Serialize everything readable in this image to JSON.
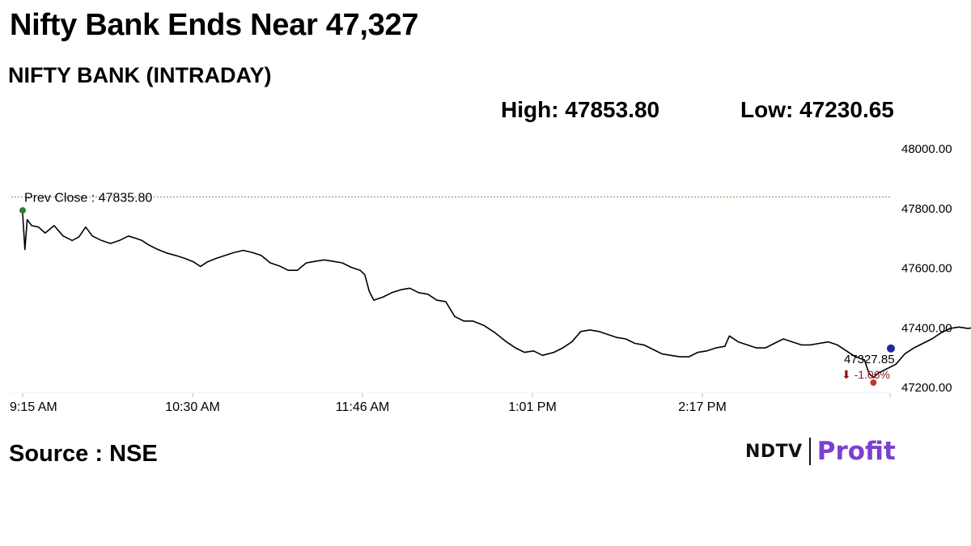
{
  "header": {
    "title": "Nifty Bank Ends Near 47,327",
    "subtitle": "NIFTY BANK (INTRADAY)",
    "high_label": "High: 47853.80",
    "low_label": "Low: 47230.65"
  },
  "footer": {
    "source": "Source : NSE",
    "brand_left": "NDTV",
    "brand_right": "Profit"
  },
  "colors": {
    "line": "#000000",
    "prev_close_line": "#b07a4a",
    "start_marker": "#2e7d32",
    "low_marker": "#c0392b",
    "end_marker": "#1a2aa0",
    "change_text": "#8b1a1a",
    "brand_accent": "#7b3fd1"
  },
  "chart_data": {
    "type": "line",
    "title": "NIFTY BANK (INTRADAY)",
    "xlabel": "",
    "ylabel": "",
    "x_ticks": [
      "9:15 AM",
      "10:30 AM",
      "11:46 AM",
      "1:01 PM",
      "2:17 PM"
    ],
    "y_ticks": [
      "48000.00",
      "47800.00",
      "47600.00",
      "47400.00",
      "47200.00"
    ],
    "ylim": [
      47200,
      48000
    ],
    "xlim_minutes_from_open": [
      0,
      375
    ],
    "grid": false,
    "prev_close": {
      "label": "Prev Close : 47835.80",
      "value": 47835.8
    },
    "last_value_label": "47327.85",
    "change_label": "-1.06%",
    "series": [
      {
        "values_by_minute": [
          [
            0,
            47780
          ],
          [
            1,
            47660
          ],
          [
            2,
            47760
          ],
          [
            4,
            47740
          ],
          [
            7,
            47735
          ],
          [
            10,
            47715
          ],
          [
            14,
            47740
          ],
          [
            18,
            47705
          ],
          [
            22,
            47690
          ],
          [
            25,
            47702
          ],
          [
            28,
            47735
          ],
          [
            31,
            47705
          ],
          [
            35,
            47690
          ],
          [
            39,
            47680
          ],
          [
            43,
            47690
          ],
          [
            47,
            47705
          ],
          [
            50,
            47698
          ],
          [
            53,
            47690
          ],
          [
            56,
            47675
          ],
          [
            60,
            47660
          ],
          [
            64,
            47648
          ],
          [
            68,
            47640
          ],
          [
            72,
            47630
          ],
          [
            76,
            47618
          ],
          [
            79,
            47603
          ],
          [
            82,
            47618
          ],
          [
            86,
            47630
          ],
          [
            90,
            47640
          ],
          [
            94,
            47650
          ],
          [
            98,
            47657
          ],
          [
            102,
            47650
          ],
          [
            106,
            47640
          ],
          [
            110,
            47615
          ],
          [
            114,
            47605
          ],
          [
            118,
            47590
          ],
          [
            122,
            47590
          ],
          [
            126,
            47615
          ],
          [
            130,
            47620
          ],
          [
            134,
            47625
          ],
          [
            138,
            47620
          ],
          [
            142,
            47615
          ],
          [
            146,
            47600
          ],
          [
            150,
            47590
          ],
          [
            152,
            47575
          ],
          [
            154,
            47520
          ],
          [
            156,
            47490
          ],
          [
            160,
            47500
          ],
          [
            164,
            47515
          ],
          [
            168,
            47525
          ],
          [
            172,
            47530
          ],
          [
            176,
            47515
          ],
          [
            180,
            47510
          ],
          [
            184,
            47490
          ],
          [
            188,
            47485
          ],
          [
            192,
            47435
          ],
          [
            196,
            47420
          ],
          [
            200,
            47420
          ],
          [
            205,
            47405
          ],
          [
            210,
            47380
          ],
          [
            215,
            47350
          ],
          [
            219,
            47330
          ],
          [
            223,
            47315
          ],
          [
            227,
            47320
          ],
          [
            231,
            47305
          ],
          [
            236,
            47315
          ],
          [
            240,
            47330
          ],
          [
            244,
            47350
          ],
          [
            248,
            47385
          ],
          [
            252,
            47390
          ],
          [
            256,
            47385
          ],
          [
            260,
            47375
          ],
          [
            264,
            47365
          ],
          [
            268,
            47360
          ],
          [
            272,
            47345
          ],
          [
            276,
            47340
          ],
          [
            280,
            47325
          ],
          [
            284,
            47310
          ],
          [
            288,
            47305
          ],
          [
            292,
            47300
          ],
          [
            296,
            47300
          ],
          [
            300,
            47315
          ],
          [
            304,
            47320
          ],
          [
            308,
            47330
          ],
          [
            312,
            47335
          ],
          [
            314,
            47370
          ],
          [
            318,
            47350
          ],
          [
            322,
            47340
          ],
          [
            326,
            47330
          ],
          [
            330,
            47330
          ],
          [
            334,
            47345
          ],
          [
            338,
            47360
          ],
          [
            342,
            47350
          ],
          [
            346,
            47340
          ],
          [
            350,
            47340
          ],
          [
            354,
            47345
          ],
          [
            358,
            47350
          ],
          [
            362,
            47340
          ],
          [
            366,
            47320
          ],
          [
            370,
            47300
          ],
          [
            374,
            47290
          ],
          [
            376,
            47245
          ],
          [
            378,
            47230
          ],
          [
            380,
            47245
          ],
          [
            384,
            47260
          ],
          [
            388,
            47275
          ],
          [
            392,
            47310
          ],
          [
            396,
            47330
          ],
          [
            400,
            47345
          ],
          [
            404,
            47360
          ],
          [
            408,
            47380
          ],
          [
            412,
            47395
          ],
          [
            416,
            47400
          ],
          [
            420,
            47395
          ],
          [
            424,
            47400
          ],
          [
            428,
            47395
          ],
          [
            432,
            47375
          ],
          [
            436,
            47355
          ],
          [
            440,
            47340
          ],
          [
            444,
            47345
          ],
          [
            448,
            47328
          ]
        ]
      }
    ]
  }
}
